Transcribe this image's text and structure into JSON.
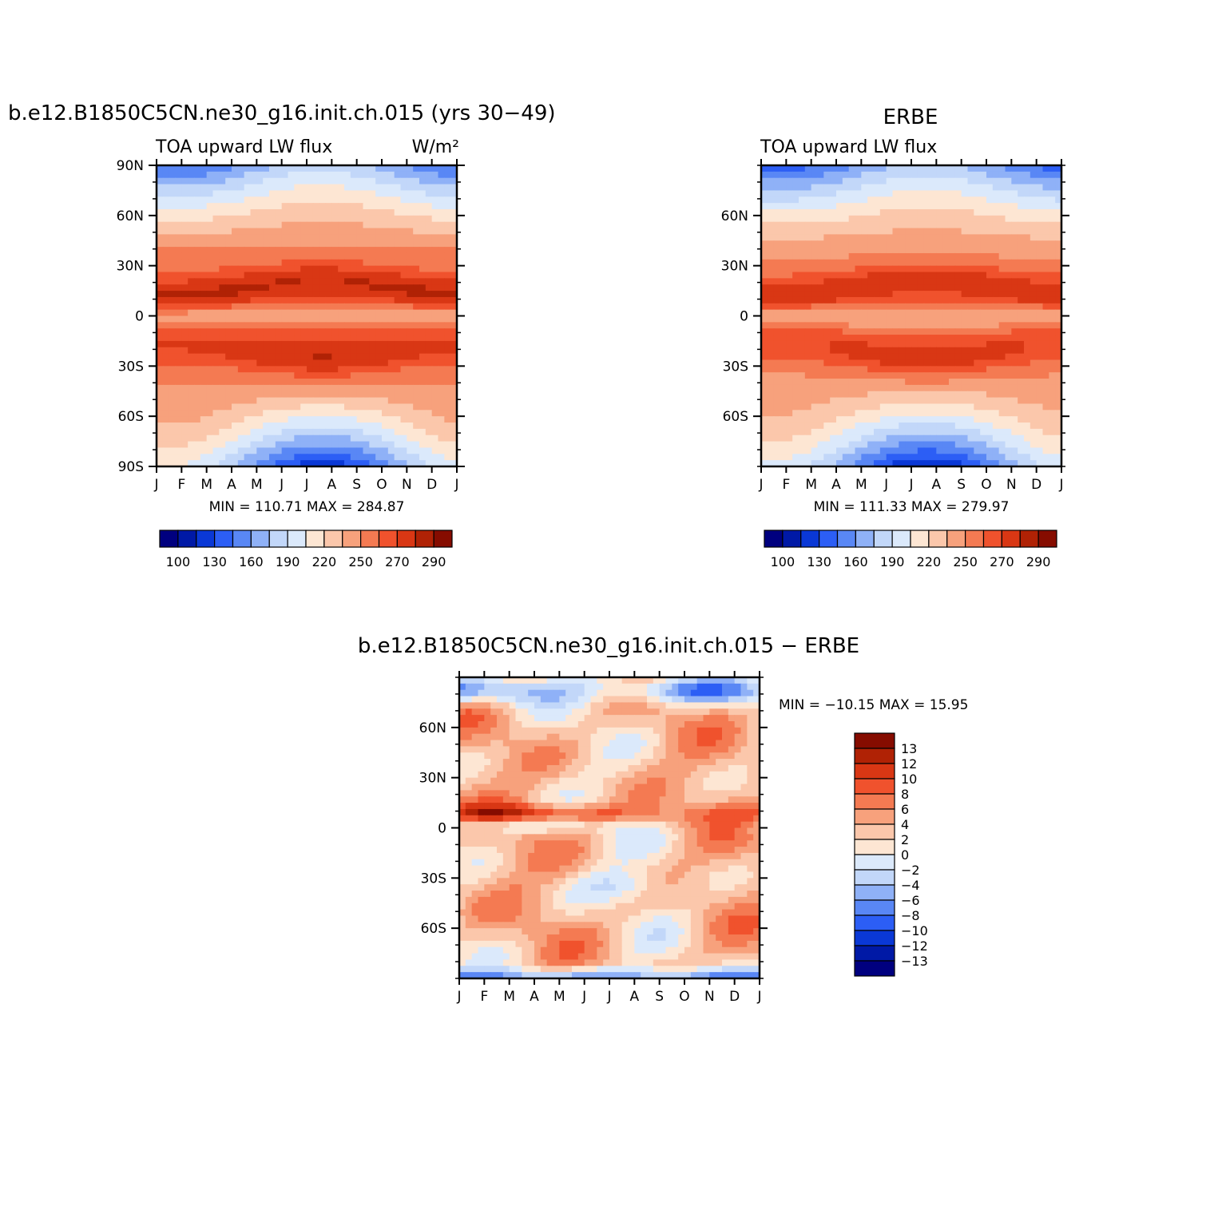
{
  "palette": {
    "levels13": [
      "#00007f",
      "#0019a6",
      "#0a38d6",
      "#2c5ef5",
      "#5987f5",
      "#8fb1f7",
      "#c2d7f9",
      "#dbe9fb",
      "#fde6d3",
      "#fbc7ab",
      "#f7a17c",
      "#f47a52",
      "#f0522d",
      "#d93714",
      "#b02205",
      "#860c00"
    ],
    "diverging": [
      "#00007f",
      "#0019a6",
      "#0a38d6",
      "#2c5ef5",
      "#5987f5",
      "#8fb1f7",
      "#c2d7f9",
      "#dbe9fb",
      "#fde6d3",
      "#fbc7ab",
      "#f7a17c",
      "#f47a52",
      "#f0522d",
      "#d93714",
      "#b02205",
      "#860c00"
    ]
  },
  "chart_data": [
    {
      "type": "heatmap",
      "title": "b.e12.B1850C5CN.ne30_g16.init.ch.015 (yrs 30−49)",
      "subtitle_left": "TOA upward LW flux",
      "subtitle_right": "W/m²",
      "x_ticks": [
        "J",
        "F",
        "M",
        "A",
        "M",
        "J",
        "J",
        "A",
        "S",
        "O",
        "N",
        "D",
        "J"
      ],
      "y_ticks": [
        "90N",
        "60N",
        "30N",
        "0",
        "30S",
        "60S",
        "90S"
      ],
      "ylim": [
        -90,
        90
      ],
      "stats": "MIN =  110.71  MAX =  284.87",
      "colorbar_levels": [
        100,
        110,
        120,
        130,
        140,
        150,
        160,
        170,
        180,
        190,
        200,
        210,
        220,
        230,
        240,
        250,
        260,
        270,
        280,
        290
      ],
      "colorbar_labels": [
        "100",
        "130",
        "160",
        "190",
        "220",
        "250",
        "270",
        "290"
      ],
      "cell_values": null
    },
    {
      "type": "heatmap",
      "title": "ERBE",
      "subtitle_left": "TOA upward LW flux",
      "x_ticks": [
        "J",
        "F",
        "M",
        "A",
        "M",
        "J",
        "J",
        "A",
        "S",
        "O",
        "N",
        "D",
        "J"
      ],
      "y_ticks": [
        "60N",
        "30N",
        "0",
        "30S",
        "60S"
      ],
      "stats": "MIN =  111.33  MAX =  279.97",
      "colorbar_labels": [
        "100",
        "130",
        "160",
        "190",
        "220",
        "250",
        "270",
        "290"
      ]
    },
    {
      "type": "heatmap",
      "title": "b.e12.B1850C5CN.ne30_g16.init.ch.015 − ERBE",
      "x_ticks": [
        "J",
        "F",
        "M",
        "A",
        "M",
        "J",
        "J",
        "A",
        "S",
        "O",
        "N",
        "D",
        "J"
      ],
      "y_ticks": [
        "60N",
        "30N",
        "0",
        "30S",
        "60S"
      ],
      "stats": "MIN = −10.15  MAX =   15.95",
      "colorbar_labels": [
        "13",
        "12",
        "10",
        "8",
        "6",
        "4",
        "2",
        "0",
        "−2",
        "−4",
        "−6",
        "−8",
        "−10",
        "−12",
        "−13"
      ]
    }
  ]
}
